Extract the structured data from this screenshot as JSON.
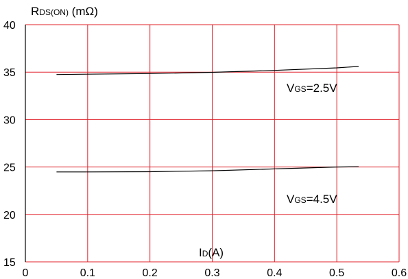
{
  "chart_data": {
    "type": "line",
    "title": "",
    "ylabel_main": "R",
    "ylabel_sub": "DS(ON)",
    "ylabel_unit": " (mΩ)",
    "xlabel_main": "I",
    "xlabel_sub": "D",
    "xlabel_unit": "(A)",
    "xlim": [
      0,
      0.6
    ],
    "ylim": [
      15,
      40
    ],
    "xticks": [
      "0",
      "0.1",
      "0.2",
      "0.3",
      "0.4",
      "0.5",
      "0.6"
    ],
    "yticks": [
      "15",
      "20",
      "25",
      "30",
      "35",
      "40"
    ],
    "grid": true,
    "grid_color": "#e0202a",
    "line_color": "#000000",
    "series": [
      {
        "name": "VGS=2.5V",
        "label_main": "V",
        "label_sub": "GS",
        "label_rest": "=2.5V",
        "x": [
          0.05,
          0.1,
          0.2,
          0.3,
          0.4,
          0.5,
          0.535
        ],
        "y": [
          34.75,
          34.78,
          34.85,
          34.98,
          35.18,
          35.45,
          35.6
        ]
      },
      {
        "name": "VGS=4.5V",
        "label_main": "V",
        "label_sub": "GS",
        "label_rest": "=4.5V",
        "x": [
          0.05,
          0.1,
          0.2,
          0.3,
          0.4,
          0.5,
          0.535
        ],
        "y": [
          24.48,
          24.48,
          24.5,
          24.6,
          24.8,
          25.0,
          25.03
        ]
      }
    ]
  }
}
